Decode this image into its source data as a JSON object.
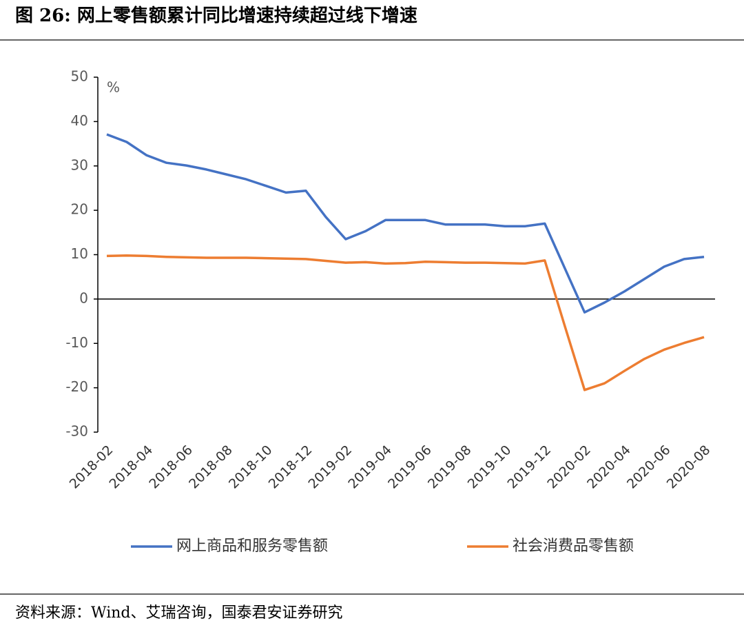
{
  "title": "图 26:  网上零售额累计同比增速持续超过线下增速",
  "source": "资料来源：Wind、艾瑞咨询，国泰君安证券研究",
  "chart_data": {
    "type": "line",
    "y_unit": "%",
    "categories": [
      "2018-02",
      null,
      "2018-04",
      null,
      "2018-06",
      null,
      "2018-08",
      null,
      "2018-10",
      null,
      "2018-12",
      null,
      "2019-02",
      null,
      "2019-04",
      null,
      "2019-06",
      null,
      "2019-08",
      null,
      "2019-10",
      null,
      "2019-12",
      null,
      "2020-02",
      null,
      "2020-04",
      null,
      "2020-06",
      null,
      "2020-08"
    ],
    "series": [
      {
        "name": "网上商品和服务零售额",
        "color": "#4472c4",
        "values": [
          37.1,
          35.4,
          32.4,
          30.7,
          30.1,
          29.2,
          28.1,
          27.0,
          25.5,
          24.0,
          24.4,
          18.5,
          13.5,
          15.3,
          17.8,
          17.8,
          17.8,
          16.8,
          16.8,
          16.8,
          16.4,
          16.4,
          17.0,
          7.0,
          -3.0,
          -0.8,
          1.7,
          4.5,
          7.3,
          9.0,
          9.5
        ]
      },
      {
        "name": "社会消费品零售额",
        "color": "#ed7d31",
        "values": [
          9.7,
          9.8,
          9.7,
          9.5,
          9.4,
          9.3,
          9.3,
          9.3,
          9.2,
          9.1,
          9.0,
          8.6,
          8.2,
          8.3,
          8.0,
          8.1,
          8.4,
          8.3,
          8.2,
          8.2,
          8.1,
          8.0,
          8.7,
          -6.0,
          -20.5,
          -19.0,
          -16.2,
          -13.5,
          -11.4,
          -9.9,
          -8.6
        ]
      }
    ],
    "ylim": [
      -30,
      50
    ],
    "yticks": [
      -30,
      -20,
      -10,
      0,
      10,
      20,
      30,
      40,
      50
    ],
    "legend": "bottom"
  }
}
